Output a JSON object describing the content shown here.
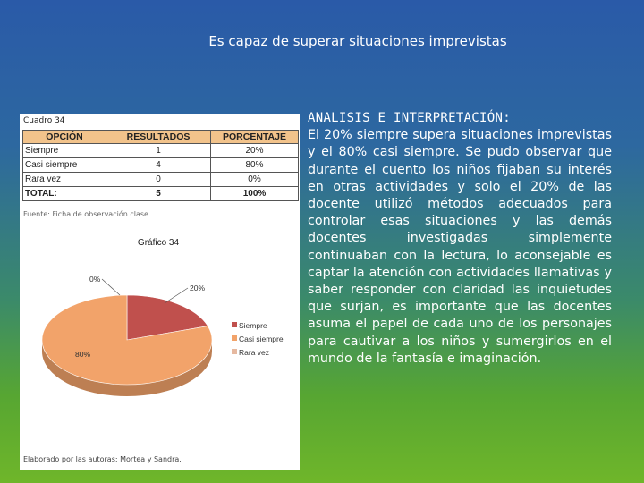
{
  "slide": {
    "title": "Es capaz de superar situaciones imprevistas"
  },
  "table": {
    "caption": "Cuadro 34",
    "headers": [
      "OPCIÓN",
      "RESULTADOS",
      "PORCENTAJE"
    ],
    "rows": [
      {
        "option": "Siempre",
        "result": "1",
        "percent": "20%"
      },
      {
        "option": "Casi siempre",
        "result": "4",
        "percent": "80%"
      },
      {
        "option": "Rara vez",
        "result": "0",
        "percent": "0%"
      }
    ],
    "total": {
      "option": "TOTAL:",
      "result": "5",
      "percent": "100%"
    },
    "source": "Fuente: Ficha de observación clase"
  },
  "chart_data": {
    "type": "pie",
    "title": "Gráfico 34",
    "categories": [
      "Siempre",
      "Casi siempre",
      "Rara vez"
    ],
    "values": [
      20,
      80,
      0
    ],
    "labels": [
      "20%",
      "80%",
      "0%"
    ],
    "colors": [
      "#c0504d",
      "#f2a36a",
      "#e6b9a0"
    ],
    "legend": "right"
  },
  "footer": {
    "credit": "Elaborado por las autoras: Mortea y Sandra."
  },
  "analysis": {
    "heading": "ANALISIS E INTERPRETACIÓN:",
    "body": "El 20% siempre supera situaciones imprevistas y el 80% casi siempre. Se pudo observar que durante el cuento los niños fijaban su interés en otras actividades y solo el 20% de las docente utilizó métodos adecuados para controlar esas situaciones y las demás docentes investigadas simplemente continuaban con la lectura, lo aconsejable es captar la atención con actividades llamativas y saber responder con claridad las inquietudes que surjan, es importante que las docentes asuma el papel de cada uno de los personajes para cautivar a los niños y sumergirlos en el mundo de la fantasía e imaginación."
  }
}
